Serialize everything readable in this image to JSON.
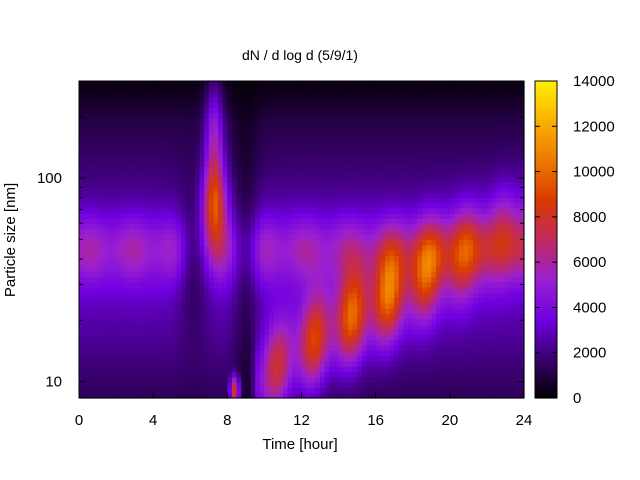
{
  "chart_data": {
    "type": "heatmap",
    "title": "dN / d log d (5/9/1)",
    "xlabel": "Time [hour]",
    "ylabel": "Particle size [nm]",
    "xlim": [
      0,
      24
    ],
    "ylim": [
      8.3,
      300
    ],
    "y_scale": "log",
    "x_ticks": [
      0,
      4,
      8,
      12,
      16,
      20,
      24
    ],
    "x_tick_labels": [
      "0",
      "4",
      "8",
      "12",
      "16",
      "20",
      "24"
    ],
    "y_ticks": [
      10,
      100
    ],
    "y_tick_labels": [
      "10",
      "100"
    ],
    "colorbar": {
      "range": [
        0,
        14000
      ],
      "ticks": [
        0,
        2000,
        4000,
        6000,
        8000,
        10000,
        12000,
        14000
      ],
      "tick_labels": [
        "0",
        "2000",
        "4000",
        "6000",
        "8000",
        "10000",
        "12000",
        "14000"
      ],
      "colormap": [
        "#000000",
        "#3a0070",
        "#7000e0",
        "#9a20d0",
        "#c02a60",
        "#d83a00",
        "#ee7800",
        "#f8b000",
        "#fff000"
      ]
    },
    "features": [
      {
        "description": "steady accumulation mode",
        "time_range": [
          0,
          24
        ],
        "diameter_nm": 45,
        "value": 6000
      },
      {
        "description": "plume",
        "time": 7.3,
        "diameter_nm": 75,
        "value": 7500
      },
      {
        "description": "nucleation burst",
        "time": 8.4,
        "diameter_nm": 9,
        "value": 7000
      },
      {
        "description": "growing particle banana",
        "time_range": [
          9.5,
          24
        ],
        "diameter_nm": [
          9,
          60
        ],
        "value_peak": 13000
      }
    ]
  }
}
